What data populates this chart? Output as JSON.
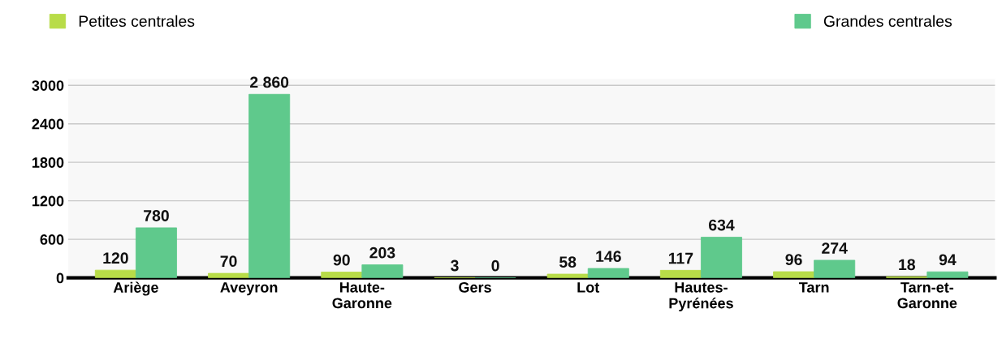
{
  "chart_data": {
    "type": "bar",
    "categories": [
      "Ariège",
      "Aveyron",
      "Haute-\nGaronne",
      "Gers",
      "Lot",
      "Hautes-\nPyrénées",
      "Tarn",
      "Tarn-et-\nGaronne"
    ],
    "series": [
      {
        "name": "Petites centrales",
        "color": "#b8dc48",
        "values": [
          120,
          70,
          90,
          3,
          58,
          117,
          96,
          18
        ],
        "value_labels": [
          "120",
          "70",
          "90",
          "3",
          "58",
          "117",
          "96",
          "18"
        ]
      },
      {
        "name": "Grandes centrales",
        "color": "#5fc98c",
        "values": [
          780,
          2860,
          203,
          0,
          146,
          634,
          274,
          94
        ],
        "value_labels": [
          "780",
          "2 860",
          "203",
          "0",
          "146",
          "634",
          "274",
          "94"
        ]
      }
    ],
    "ylim": [
      0,
      3100
    ],
    "yticks": [
      0,
      600,
      1200,
      1800,
      2400,
      3000
    ],
    "grid": "y",
    "legend": "top"
  }
}
